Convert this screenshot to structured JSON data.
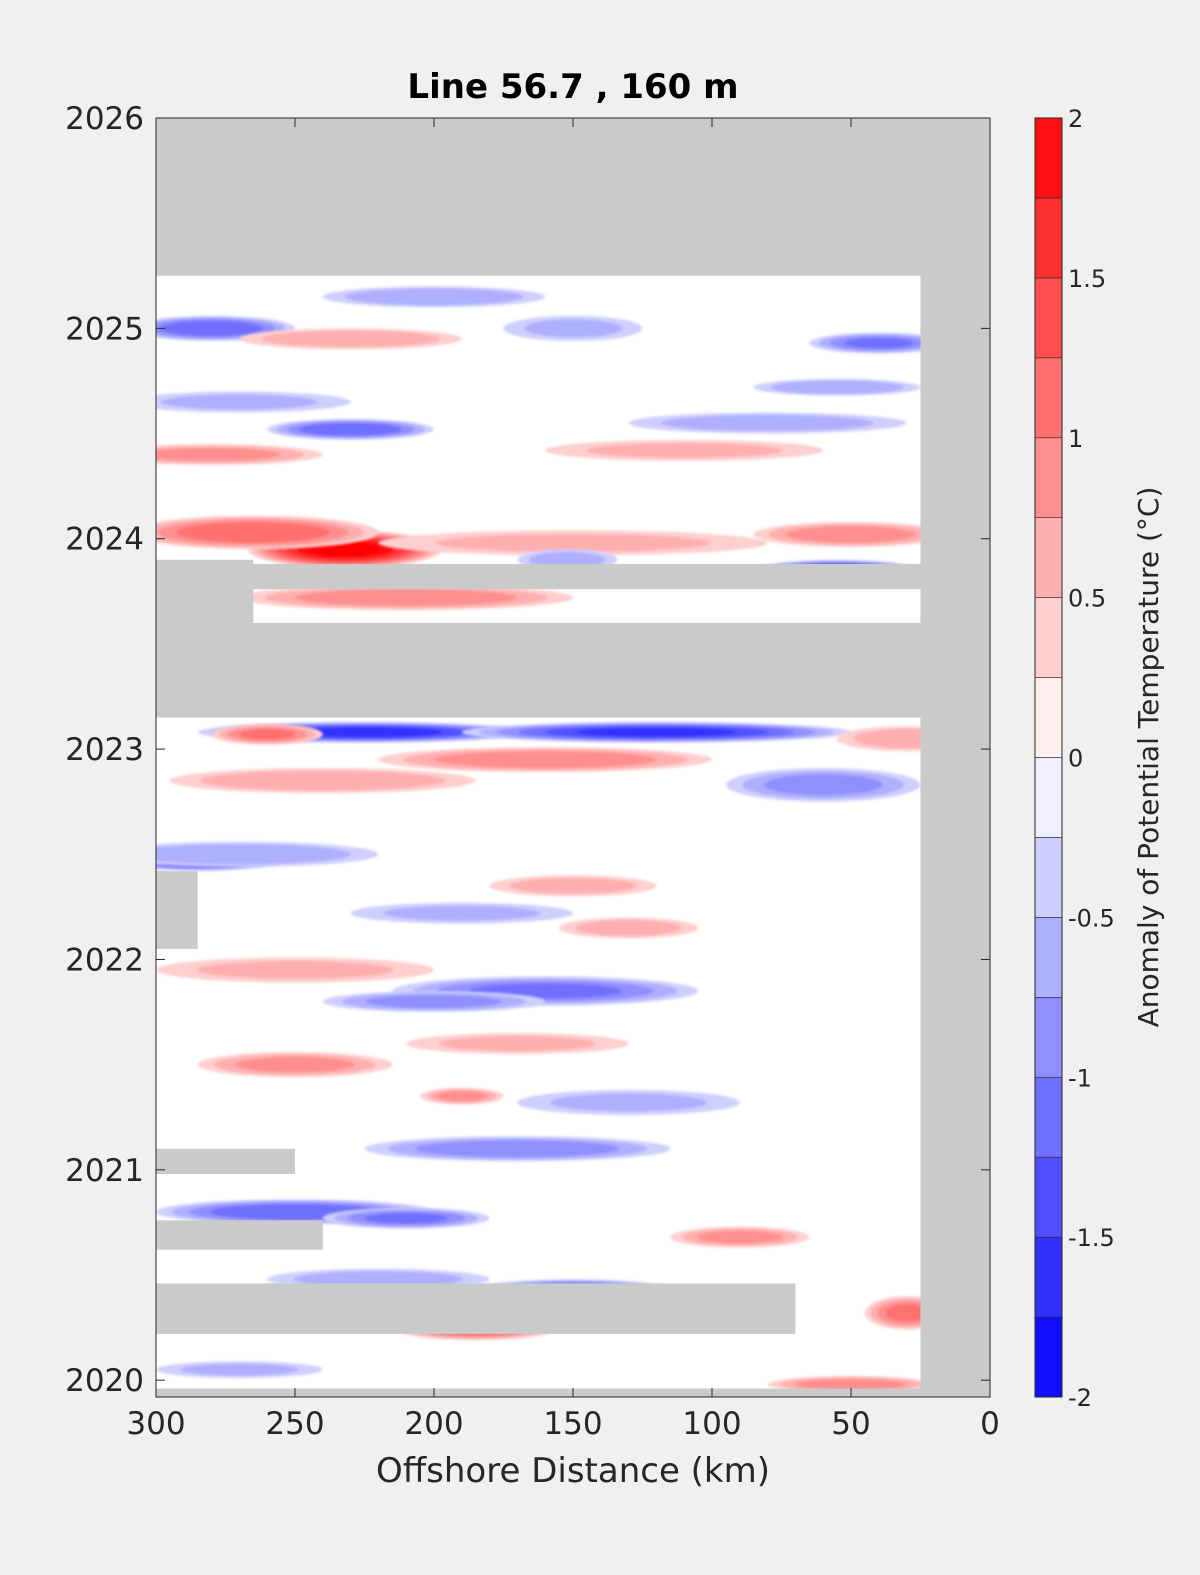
{
  "chart_data": {
    "type": "heatmap",
    "title": "Line 56.7 , 160 m",
    "xlabel": "Offshore Distance (km)",
    "ylabel": "",
    "xlim": [
      300,
      0
    ],
    "x_reversed": true,
    "ylim": [
      2019.92,
      2026.0
    ],
    "xticks": [
      300,
      250,
      200,
      150,
      100,
      50,
      0
    ],
    "yticks": [
      2020,
      2021,
      2022,
      2023,
      2024,
      2025,
      2026
    ],
    "colorbar": {
      "label": "Anomaly of Potential Temperature (°C)",
      "range": [
        -2,
        2
      ],
      "step": 0.25,
      "ticks": [
        -2,
        -1.5,
        -1,
        -0.5,
        0,
        0.5,
        1,
        1.5,
        2
      ],
      "tick_labels": [
        "-2",
        "-1.5",
        "-1",
        "-0.5",
        "0",
        "0.5",
        "1",
        "1.5",
        "2"
      ],
      "low_color": "#0000ff",
      "mid_color": "#ffffff",
      "high_color": "#ff0000"
    },
    "no_data_color": "#cacaca",
    "no_data_regions": [
      {
        "x": [
          300,
          0
        ],
        "y": [
          2025.25,
          2026.0
        ]
      },
      {
        "x": [
          25,
          0
        ],
        "y": [
          2019.92,
          2026.0
        ]
      },
      {
        "x": [
          300,
          0
        ],
        "y": [
          2019.92,
          2019.96
        ]
      },
      {
        "x": [
          300,
          0
        ],
        "y": [
          2023.15,
          2023.6
        ]
      },
      {
        "x": [
          300,
          25
        ],
        "y": [
          2023.76,
          2023.88
        ]
      },
      {
        "x": [
          300,
          265
        ],
        "y": [
          2023.6,
          2023.9
        ]
      },
      {
        "x": [
          300,
          285
        ],
        "y": [
          2022.05,
          2022.42
        ]
      },
      {
        "x": [
          300,
          250
        ],
        "y": [
          2020.98,
          2021.1
        ]
      },
      {
        "x": [
          300,
          240
        ],
        "y": [
          2020.62,
          2020.76
        ]
      },
      {
        "x": [
          300,
          70
        ],
        "y": [
          2020.22,
          2020.46
        ]
      }
    ],
    "anomalies": [
      {
        "x": 232,
        "y": 2023.95,
        "value": 2.0,
        "sx": 35,
        "sy": 0.09
      },
      {
        "x": 265,
        "y": 2024.03,
        "value": 1.2,
        "sx": 45,
        "sy": 0.08
      },
      {
        "x": 210,
        "y": 2023.72,
        "value": 0.9,
        "sx": 60,
        "sy": 0.06
      },
      {
        "x": 150,
        "y": 2023.98,
        "value": 0.5,
        "sx": 70,
        "sy": 0.06
      },
      {
        "x": 50,
        "y": 2024.02,
        "value": 0.9,
        "sx": 35,
        "sy": 0.06
      },
      {
        "x": 55,
        "y": 2023.85,
        "value": -1.6,
        "sx": 30,
        "sy": 0.05
      },
      {
        "x": 152,
        "y": 2023.9,
        "value": -0.6,
        "sx": 18,
        "sy": 0.05
      },
      {
        "x": 225,
        "y": 2023.08,
        "value": -1.6,
        "sx": 60,
        "sy": 0.05
      },
      {
        "x": 120,
        "y": 2023.08,
        "value": -1.5,
        "sx": 70,
        "sy": 0.05
      },
      {
        "x": 260,
        "y": 2023.07,
        "value": 1.0,
        "sx": 20,
        "sy": 0.05
      },
      {
        "x": 160,
        "y": 2022.95,
        "value": 0.9,
        "sx": 60,
        "sy": 0.06
      },
      {
        "x": 240,
        "y": 2022.85,
        "value": 0.7,
        "sx": 55,
        "sy": 0.06
      },
      {
        "x": 60,
        "y": 2022.83,
        "value": -0.8,
        "sx": 35,
        "sy": 0.08
      },
      {
        "x": 30,
        "y": 2023.05,
        "value": 0.6,
        "sx": 25,
        "sy": 0.06
      },
      {
        "x": 285,
        "y": 2022.47,
        "value": -1.3,
        "sx": 30,
        "sy": 0.05
      },
      {
        "x": 270,
        "y": 2022.5,
        "value": -0.7,
        "sx": 50,
        "sy": 0.06
      },
      {
        "x": 150,
        "y": 2022.35,
        "value": 0.6,
        "sx": 30,
        "sy": 0.05
      },
      {
        "x": 130,
        "y": 2022.15,
        "value": 0.6,
        "sx": 25,
        "sy": 0.05
      },
      {
        "x": 190,
        "y": 2022.22,
        "value": -0.5,
        "sx": 40,
        "sy": 0.05
      },
      {
        "x": 160,
        "y": 2021.85,
        "value": -1.0,
        "sx": 55,
        "sy": 0.07
      },
      {
        "x": 200,
        "y": 2021.8,
        "value": -0.8,
        "sx": 40,
        "sy": 0.05
      },
      {
        "x": 250,
        "y": 2021.95,
        "value": 0.5,
        "sx": 50,
        "sy": 0.06
      },
      {
        "x": 250,
        "y": 2021.5,
        "value": 0.8,
        "sx": 35,
        "sy": 0.06
      },
      {
        "x": 170,
        "y": 2021.6,
        "value": 0.5,
        "sx": 40,
        "sy": 0.05
      },
      {
        "x": 190,
        "y": 2021.35,
        "value": 0.8,
        "sx": 15,
        "sy": 0.04
      },
      {
        "x": 170,
        "y": 2021.1,
        "value": -0.9,
        "sx": 55,
        "sy": 0.06
      },
      {
        "x": 130,
        "y": 2021.32,
        "value": -0.5,
        "sx": 40,
        "sy": 0.06
      },
      {
        "x": 250,
        "y": 2020.8,
        "value": -1.2,
        "sx": 50,
        "sy": 0.06
      },
      {
        "x": 210,
        "y": 2020.77,
        "value": -1.0,
        "sx": 30,
        "sy": 0.05
      },
      {
        "x": 90,
        "y": 2020.68,
        "value": 0.8,
        "sx": 25,
        "sy": 0.05
      },
      {
        "x": 150,
        "y": 2020.43,
        "value": -1.2,
        "sx": 35,
        "sy": 0.05
      },
      {
        "x": 220,
        "y": 2020.48,
        "value": -0.6,
        "sx": 40,
        "sy": 0.05
      },
      {
        "x": 185,
        "y": 2020.25,
        "value": 1.2,
        "sx": 30,
        "sy": 0.06
      },
      {
        "x": 30,
        "y": 2020.32,
        "value": 1.0,
        "sx": 15,
        "sy": 0.08
      },
      {
        "x": 50,
        "y": 2019.98,
        "value": 0.9,
        "sx": 30,
        "sy": 0.04
      },
      {
        "x": 270,
        "y": 2020.05,
        "value": -0.5,
        "sx": 30,
        "sy": 0.04
      },
      {
        "x": 280,
        "y": 2025.0,
        "value": -1.2,
        "sx": 30,
        "sy": 0.06
      },
      {
        "x": 200,
        "y": 2025.15,
        "value": -0.7,
        "sx": 40,
        "sy": 0.05
      },
      {
        "x": 230,
        "y": 2024.95,
        "value": 0.7,
        "sx": 40,
        "sy": 0.05
      },
      {
        "x": 150,
        "y": 2025.0,
        "value": -0.5,
        "sx": 25,
        "sy": 0.06
      },
      {
        "x": 40,
        "y": 2024.93,
        "value": -1.0,
        "sx": 25,
        "sy": 0.05
      },
      {
        "x": 230,
        "y": 2024.52,
        "value": -1.2,
        "sx": 30,
        "sy": 0.05
      },
      {
        "x": 270,
        "y": 2024.65,
        "value": -0.5,
        "sx": 40,
        "sy": 0.05
      },
      {
        "x": 280,
        "y": 2024.4,
        "value": 0.8,
        "sx": 40,
        "sy": 0.05
      },
      {
        "x": 80,
        "y": 2024.55,
        "value": -0.6,
        "sx": 50,
        "sy": 0.05
      },
      {
        "x": 55,
        "y": 2024.72,
        "value": -0.7,
        "sx": 30,
        "sy": 0.04
      },
      {
        "x": 110,
        "y": 2024.42,
        "value": 0.5,
        "sx": 50,
        "sy": 0.05
      }
    ]
  }
}
